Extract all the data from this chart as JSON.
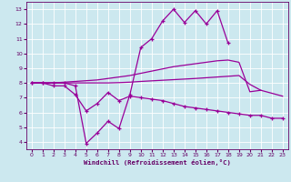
{
  "xlabel": "Windchill (Refroidissement éolien,°C)",
  "x": [
    0,
    1,
    2,
    3,
    4,
    5,
    6,
    7,
    8,
    9,
    10,
    11,
    12,
    13,
    14,
    15,
    16,
    17,
    18,
    19,
    20,
    21,
    22,
    23
  ],
  "line_upper": [
    8.0,
    8.0,
    8.0,
    8.0,
    7.8,
    3.9,
    4.6,
    5.4,
    4.9,
    7.2,
    10.4,
    11.0,
    12.2,
    13.0,
    12.1,
    12.9,
    12.0,
    12.9,
    10.7,
    null,
    null,
    null,
    null,
    null
  ],
  "line_reg_high": [
    8.0,
    8.0,
    8.0,
    8.05,
    8.1,
    8.15,
    8.2,
    8.3,
    8.4,
    8.5,
    8.65,
    8.8,
    8.95,
    9.1,
    9.2,
    9.3,
    9.4,
    9.5,
    9.55,
    9.4,
    7.4,
    7.5,
    null,
    null
  ],
  "line_reg_low": [
    8.0,
    8.0,
    8.0,
    8.0,
    8.0,
    8.0,
    8.0,
    8.0,
    8.02,
    8.05,
    8.1,
    8.14,
    8.18,
    8.22,
    8.26,
    8.3,
    8.35,
    8.4,
    8.45,
    8.5,
    7.9,
    7.5,
    7.3,
    7.1
  ],
  "line_lower": [
    8.0,
    8.0,
    7.8,
    7.8,
    7.2,
    6.1,
    6.6,
    7.35,
    6.8,
    7.1,
    7.0,
    6.9,
    6.8,
    6.6,
    6.4,
    6.3,
    6.2,
    6.1,
    6.0,
    5.9,
    5.8,
    5.8,
    5.6,
    5.6
  ],
  "bg_color": "#cce8ef",
  "grid_color": "#ffffff",
  "line_color": "#990099",
  "tick_color": "#660066",
  "ylim": [
    3.5,
    13.5
  ],
  "xlim": [
    -0.5,
    23.5
  ],
  "yticks": [
    4,
    5,
    6,
    7,
    8,
    9,
    10,
    11,
    12,
    13
  ],
  "xticks": [
    0,
    1,
    2,
    3,
    4,
    5,
    6,
    7,
    8,
    9,
    10,
    11,
    12,
    13,
    14,
    15,
    16,
    17,
    18,
    19,
    20,
    21,
    22,
    23
  ]
}
